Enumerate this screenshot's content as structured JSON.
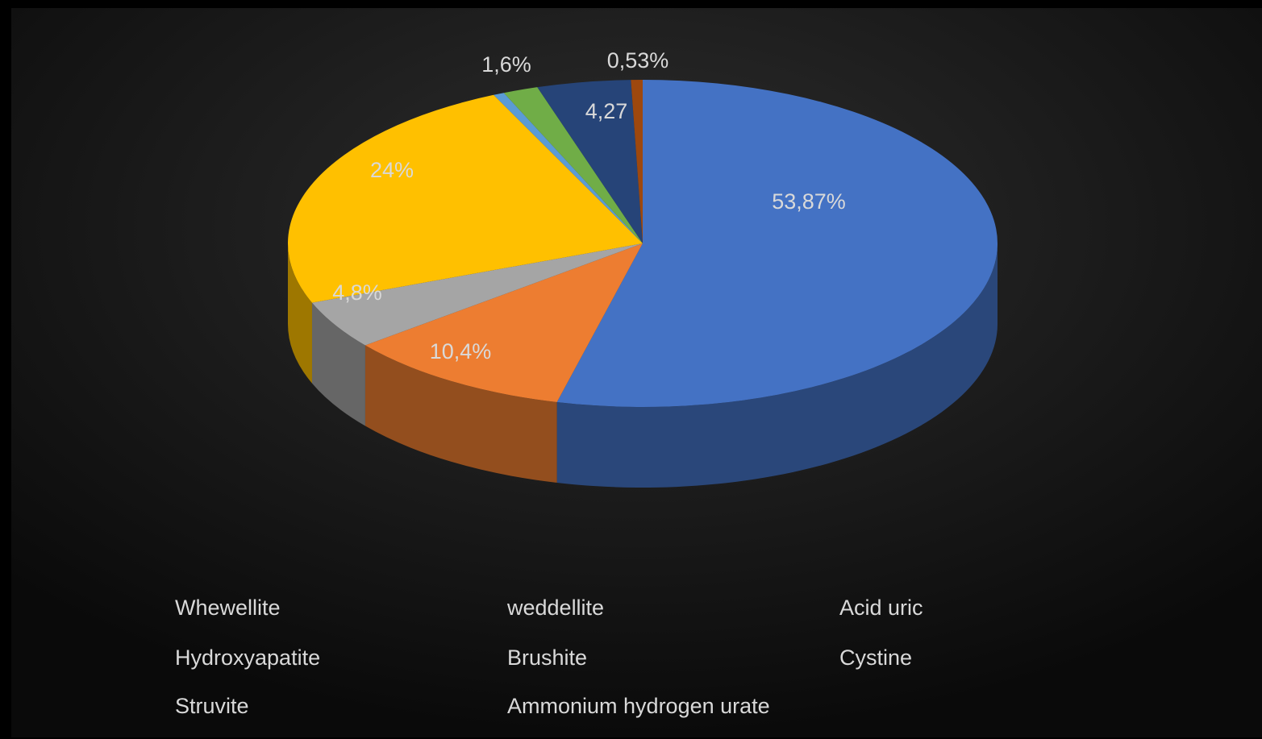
{
  "chart_data": {
    "type": "pie",
    "categories": [
      "Whewellite",
      "weddellite",
      "Acid uric",
      "Hydroxyapatite",
      "Brushite",
      "Cystine",
      "Struvite",
      "Ammonium hydrogen urate"
    ],
    "values": [
      53.87,
      10.4,
      4.8,
      24,
      0.5,
      1.6,
      4.27,
      0.53
    ],
    "value_labels": [
      "53,87%",
      "10,4%",
      "4,8%",
      "24%",
      null,
      "1,6%",
      "4,27",
      "0,53%"
    ],
    "colors": [
      "#4472c4",
      "#ed7d31",
      "#a5a5a5",
      "#ffc000",
      "#5b9bd5",
      "#70ad47",
      "#264478",
      "#9e480e"
    ],
    "legend": "bottom"
  }
}
